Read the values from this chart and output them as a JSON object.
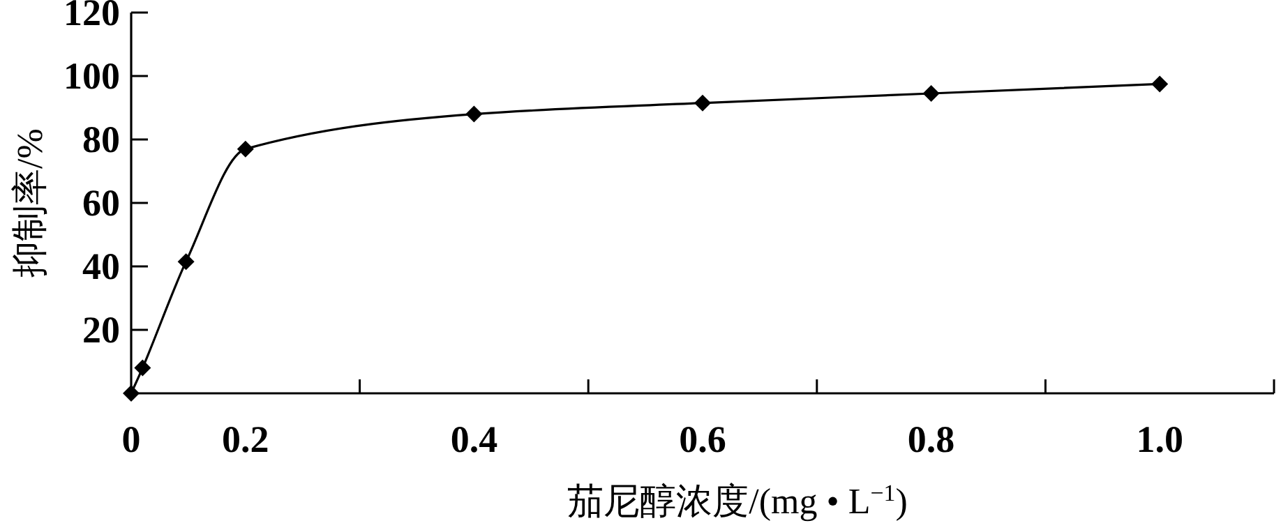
{
  "chart_data": {
    "type": "line",
    "xlabel": "茄尼醇浓度/(mg • L$^{−1}$)",
    "ylabel": "抑制率/%",
    "x": [
      0.1,
      0.11,
      0.148,
      0.2,
      0.4,
      0.6,
      0.8,
      1.0
    ],
    "series": [
      {
        "color": "#000000",
        "values": [
          0,
          8,
          41.5,
          77,
          88,
          91.5,
          94.5,
          97.5
        ]
      }
    ],
    "xlim": [
      0.1,
      1.1
    ],
    "xticks": [
      {
        "value": 0.1,
        "label": "0"
      },
      0.2,
      {
        "value": 0.3,
        "label": null
      },
      0.4,
      {
        "value": 0.5,
        "label": null
      },
      0.6,
      {
        "value": 0.7,
        "label": null
      },
      0.8,
      {
        "value": 0.9,
        "label": null
      },
      {
        "value": 1.0,
        "label": "1.0"
      },
      {
        "value": 1.1,
        "label": null
      }
    ],
    "ylim": [
      0,
      120
    ],
    "yticks": [
      20,
      40,
      60,
      80,
      100,
      120
    ],
    "marker": "diamond"
  }
}
